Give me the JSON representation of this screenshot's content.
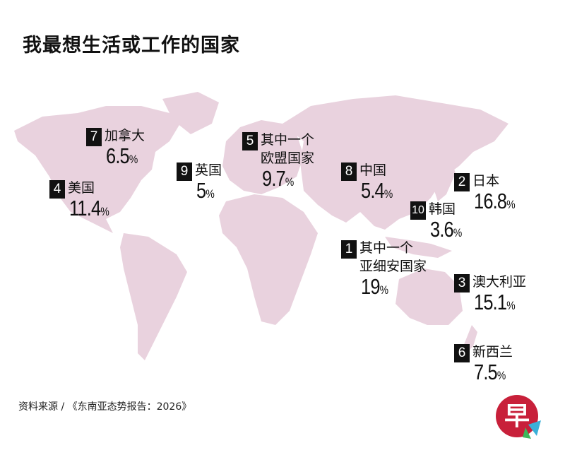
{
  "title": "我最想生活或工作的国家",
  "source": "资料来源 / 《东南亚态势报告：2026》",
  "colors": {
    "land": "#e9d2de",
    "badge": "#111111",
    "logo_red": "#c8203a"
  },
  "logo": {
    "text": "早"
  },
  "chart_data": {
    "type": "map",
    "unit": "%",
    "entries": [
      {
        "rank": "1",
        "name_lines": [
          "其中一个",
          "亚细安国家"
        ],
        "value": 19
      },
      {
        "rank": "2",
        "name_lines": [
          "日本"
        ],
        "value": 16.8
      },
      {
        "rank": "3",
        "name_lines": [
          "澳大利亚"
        ],
        "value": 15.1
      },
      {
        "rank": "4",
        "name_lines": [
          "美国"
        ],
        "value": 11.4
      },
      {
        "rank": "5",
        "name_lines": [
          "其中一个",
          "欧盟国家"
        ],
        "value": 9.7
      },
      {
        "rank": "6",
        "name_lines": [
          "新西兰"
        ],
        "value": 7.5
      },
      {
        "rank": "7",
        "name_lines": [
          "加拿大"
        ],
        "value": 6.5
      },
      {
        "rank": "8",
        "name_lines": [
          "中国"
        ],
        "value": 5.4
      },
      {
        "rank": "9",
        "name_lines": [
          "英国"
        ],
        "value": 5
      },
      {
        "rank": "10",
        "name_lines": [
          "韩国"
        ],
        "value": 3.6
      }
    ]
  }
}
